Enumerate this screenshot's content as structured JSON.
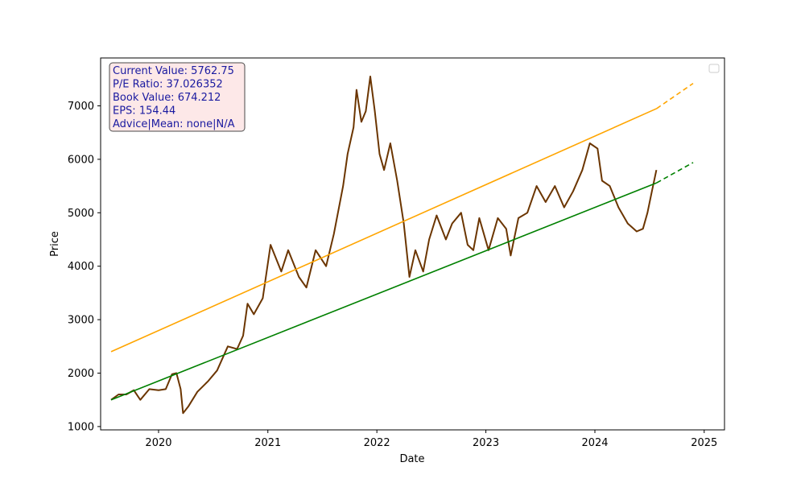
{
  "chart_data": {
    "type": "line",
    "title": "",
    "xlabel": "Date",
    "ylabel": "Price",
    "xlim": [
      "2019-06-21",
      "2025-03-10"
    ],
    "ylim": [
      938,
      7896
    ],
    "x_ticks": [
      "2020",
      "2021",
      "2022",
      "2023",
      "2024",
      "2025"
    ],
    "y_ticks": [
      1000,
      2000,
      3000,
      4000,
      5000,
      6000,
      7000
    ],
    "grid": false,
    "legend": "top-right",
    "info_box": {
      "lines": [
        "Current Value: 5762.75",
        "P/E Ratio: 37.026352",
        "Book Value: 674.212",
        "EPS: 154.44",
        "Advice|Mean: none|N/A"
      ],
      "text_color": "#1a1aa0",
      "background": "#fde8e8",
      "border": "#4a4a4a"
    },
    "series": [
      {
        "color": "#6b3500",
        "style": "solid",
        "points": [
          [
            "2019-07-26",
            1500
          ],
          [
            "2019-08-20",
            1600
          ],
          [
            "2019-09-15",
            1600
          ],
          [
            "2019-10-10",
            1680
          ],
          [
            "2019-11-01",
            1500
          ],
          [
            "2019-12-01",
            1700
          ],
          [
            "2020-01-01",
            1680
          ],
          [
            "2020-01-25",
            1700
          ],
          [
            "2020-02-15",
            1980
          ],
          [
            "2020-03-01",
            2000
          ],
          [
            "2020-03-15",
            1700
          ],
          [
            "2020-03-23",
            1250
          ],
          [
            "2020-04-10",
            1380
          ],
          [
            "2020-05-10",
            1650
          ],
          [
            "2020-06-15",
            1850
          ],
          [
            "2020-07-15",
            2050
          ],
          [
            "2020-08-20",
            2500
          ],
          [
            "2020-09-20",
            2450
          ],
          [
            "2020-10-10",
            2700
          ],
          [
            "2020-10-25",
            3300
          ],
          [
            "2020-11-15",
            3100
          ],
          [
            "2020-12-15",
            3400
          ],
          [
            "2021-01-10",
            4400
          ],
          [
            "2021-02-15",
            3900
          ],
          [
            "2021-03-10",
            4300
          ],
          [
            "2021-04-15",
            3800
          ],
          [
            "2021-05-10",
            3600
          ],
          [
            "2021-06-10",
            4300
          ],
          [
            "2021-07-15",
            4000
          ],
          [
            "2021-08-10",
            4600
          ],
          [
            "2021-09-10",
            5500
          ],
          [
            "2021-09-25",
            6100
          ],
          [
            "2021-10-15",
            6600
          ],
          [
            "2021-10-25",
            7300
          ],
          [
            "2021-11-10",
            6700
          ],
          [
            "2021-11-25",
            6900
          ],
          [
            "2021-12-10",
            7550
          ],
          [
            "2021-12-25",
            6900
          ],
          [
            "2022-01-10",
            6100
          ],
          [
            "2022-01-25",
            5800
          ],
          [
            "2022-02-15",
            6300
          ],
          [
            "2022-03-10",
            5600
          ],
          [
            "2022-04-01",
            4800
          ],
          [
            "2022-04-20",
            3800
          ],
          [
            "2022-05-10",
            4300
          ],
          [
            "2022-06-05",
            3900
          ],
          [
            "2022-06-25",
            4500
          ],
          [
            "2022-07-20",
            4950
          ],
          [
            "2022-08-20",
            4500
          ],
          [
            "2022-09-10",
            4800
          ],
          [
            "2022-10-10",
            5000
          ],
          [
            "2022-11-01",
            4400
          ],
          [
            "2022-11-20",
            4300
          ],
          [
            "2022-12-10",
            4900
          ],
          [
            "2023-01-10",
            4300
          ],
          [
            "2023-02-10",
            4900
          ],
          [
            "2023-03-10",
            4700
          ],
          [
            "2023-03-25",
            4200
          ],
          [
            "2023-04-20",
            4900
          ],
          [
            "2023-05-20",
            5000
          ],
          [
            "2023-06-20",
            5500
          ],
          [
            "2023-07-20",
            5200
          ],
          [
            "2023-08-20",
            5500
          ],
          [
            "2023-09-20",
            5100
          ],
          [
            "2023-10-20",
            5400
          ],
          [
            "2023-11-20",
            5800
          ],
          [
            "2023-12-15",
            6300
          ],
          [
            "2024-01-10",
            6200
          ],
          [
            "2024-01-25",
            5600
          ],
          [
            "2024-02-20",
            5500
          ],
          [
            "2024-03-20",
            5100
          ],
          [
            "2024-04-20",
            4800
          ],
          [
            "2024-05-20",
            4650
          ],
          [
            "2024-06-10",
            4700
          ],
          [
            "2024-06-25",
            5000
          ],
          [
            "2024-07-10",
            5400
          ],
          [
            "2024-07-25",
            5800
          ]
        ]
      },
      {
        "color": "#ffa500",
        "style": "solid",
        "points": [
          [
            "2019-07-26",
            2400
          ],
          [
            "2024-07-26",
            6950
          ]
        ]
      },
      {
        "color": "#ffa500",
        "style": "dashed",
        "points": [
          [
            "2024-07-26",
            6950
          ],
          [
            "2024-11-25",
            7420
          ]
        ]
      },
      {
        "color": "#008000",
        "style": "solid",
        "points": [
          [
            "2019-07-26",
            1500
          ],
          [
            "2024-07-26",
            5560
          ]
        ]
      },
      {
        "color": "#008000",
        "style": "dashed",
        "points": [
          [
            "2024-07-26",
            5560
          ],
          [
            "2024-11-25",
            5940
          ]
        ]
      }
    ]
  }
}
